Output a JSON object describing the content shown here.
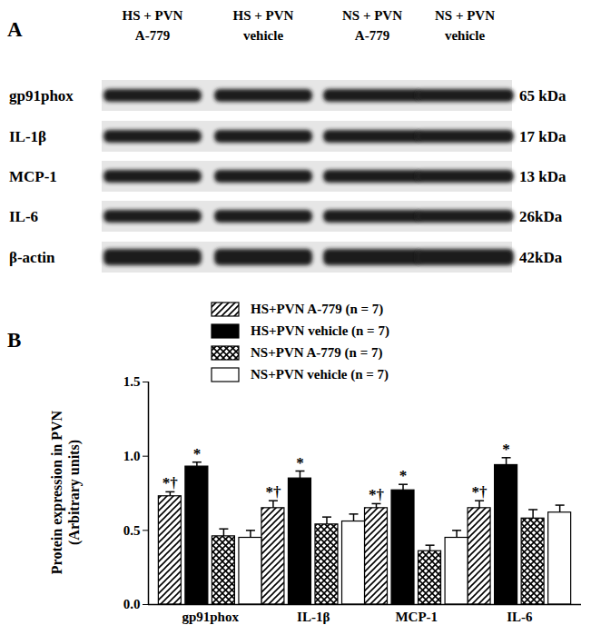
{
  "blot": {
    "panel_label": "A",
    "lanes": [
      [
        "HS + PVN",
        "A-779"
      ],
      [
        "HS + PVN",
        "vehicle"
      ],
      [
        "NS + PVN",
        "A-779"
      ],
      [
        "NS + PVN",
        "vehicle"
      ]
    ],
    "rows": [
      {
        "name": "gp91phox",
        "size": "65 kDa"
      },
      {
        "name": "IL-1β",
        "size": "17 kDa"
      },
      {
        "name": "MCP-1",
        "size": "13 kDa"
      },
      {
        "name": "IL-6",
        "size": "26kDa"
      },
      {
        "name": "β-actin",
        "size": "42kDa"
      }
    ]
  },
  "chart_data": {
    "type": "bar",
    "panel_label": "B",
    "ylabel": "Protein expression in PVN\n(Arbitrary units)",
    "categories": [
      "gp91phox",
      "IL-1β",
      "MCP-1",
      "IL-6"
    ],
    "series": [
      {
        "name": "HS+PVN A-779 (n = 7)",
        "color": "#000000",
        "values": [
          0.73,
          0.65,
          0.65,
          0.65
        ],
        "errors": [
          0.03,
          0.05,
          0.03,
          0.05
        ],
        "significance": [
          "*†",
          "*†",
          "*†",
          "*†"
        ]
      },
      {
        "name": "HS+PVN vehicle (n = 7)",
        "color": "#000000",
        "values": [
          0.93,
          0.85,
          0.77,
          0.94
        ],
        "errors": [
          0.03,
          0.05,
          0.04,
          0.05
        ],
        "significance": [
          "*",
          "*",
          "*",
          "*"
        ]
      },
      {
        "name": "NS+PVN A-779 (n = 7)",
        "color": "#000000",
        "values": [
          0.46,
          0.54,
          0.36,
          0.58
        ],
        "errors": [
          0.05,
          0.05,
          0.04,
          0.06
        ]
      },
      {
        "name": "NS+PVN vehicle (n = 7)",
        "color": "#ffffff",
        "values": [
          0.45,
          0.56,
          0.45,
          0.62
        ],
        "errors": [
          0.05,
          0.05,
          0.05,
          0.05
        ]
      }
    ],
    "ylim": [
      0,
      1.5
    ],
    "yticks": [
      {
        "value": 0,
        "label": "0.0"
      },
      0.5,
      {
        "value": 1,
        "label": "1.0"
      },
      1.5
    ],
    "legend": "top"
  }
}
